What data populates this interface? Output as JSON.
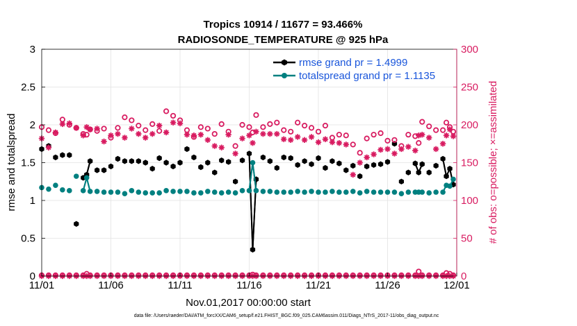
{
  "chart_data": {
    "type": "line",
    "title": "Tropics 10914 / 11677 = 93.466%",
    "subtitle": "RADIOSONDE_TEMPERATURE @ 925 hPa",
    "xlabel": "Nov.01,2017 00:00:00 start",
    "ylabel": "rmse and totalspread",
    "y2label": "# of obs: o=possible; ×=assimilated",
    "footnote": "data file: /Users/raeder/DAI/ATM_forcXX/CAM6_setup/f.e21.FHIST_BGC.f09_025.CAM6assim.011/Diags_NTrS_2017-11/obs_diag_output.nc",
    "x_ticks": [
      "11/01",
      "11/06",
      "11/11",
      "11/16",
      "11/21",
      "11/26",
      "12/01"
    ],
    "x_tick_days": [
      0,
      5,
      10,
      15,
      20,
      25,
      30
    ],
    "xlim": [
      0,
      30
    ],
    "ylim": [
      0,
      3
    ],
    "y_ticks": [
      "0",
      "0.5",
      "1",
      "1.5",
      "2",
      "2.5",
      "3"
    ],
    "y2lim": [
      0,
      300
    ],
    "y2_ticks": [
      "0",
      "50",
      "100",
      "150",
      "200",
      "250",
      "300"
    ],
    "x_days": [
      0.0,
      0.5,
      1.0,
      1.5,
      2.0,
      2.5,
      3.0,
      3.25,
      3.5,
      4.0,
      4.5,
      5.0,
      5.5,
      6.0,
      6.5,
      7.0,
      7.5,
      8.0,
      8.5,
      9.0,
      9.5,
      10.0,
      10.5,
      11.0,
      11.5,
      12.0,
      12.5,
      13.0,
      13.5,
      14.0,
      14.5,
      15.0,
      15.25,
      15.5,
      16.0,
      16.5,
      17.0,
      17.5,
      18.0,
      18.5,
      19.0,
      19.5,
      20.0,
      20.5,
      21.0,
      21.5,
      22.0,
      22.5,
      23.0,
      23.5,
      24.0,
      24.5,
      25.0,
      25.5,
      26.0,
      26.5,
      27.0,
      27.25,
      27.5,
      28.0,
      28.5,
      29.0,
      29.25,
      29.5,
      29.75
    ],
    "series": [
      {
        "name": "rmse grand pr = 1.4999",
        "color": "#000000",
        "axis": "left",
        "marker": "hexagon",
        "values": [
          1.68,
          1.72,
          1.57,
          1.6,
          1.6,
          0.69,
          1.3,
          1.34,
          1.52,
          1.4,
          1.4,
          1.45,
          1.55,
          1.52,
          1.52,
          1.52,
          1.5,
          1.42,
          1.56,
          1.5,
          1.45,
          1.5,
          1.68,
          1.57,
          1.44,
          1.5,
          1.37,
          1.53,
          1.51,
          1.25,
          1.53,
          1.62,
          0.35,
          1.28,
          1.57,
          1.52,
          1.43,
          1.57,
          1.56,
          1.47,
          1.52,
          1.48,
          1.56,
          1.43,
          1.52,
          1.49,
          1.4,
          1.46,
          1.32,
          1.45,
          1.47,
          1.48,
          1.51,
          1.75,
          1.25,
          1.37,
          1.49,
          1.37,
          1.48,
          1.37,
          1.46,
          1.55,
          1.32,
          1.42,
          1.21
        ]
      },
      {
        "name": "totalspread grand pr = 1.1135",
        "color": "#008080",
        "axis": "left",
        "marker": "circle",
        "values": [
          1.17,
          1.15,
          1.2,
          1.14,
          1.13,
          1.32,
          1.13,
          1.3,
          1.12,
          1.12,
          1.11,
          1.11,
          1.11,
          1.09,
          1.13,
          1.11,
          1.1,
          1.1,
          1.1,
          1.13,
          1.12,
          1.12,
          1.12,
          1.1,
          1.1,
          1.12,
          1.11,
          1.1,
          1.11,
          1.1,
          1.13,
          1.13,
          1.5,
          1.13,
          1.12,
          1.12,
          1.11,
          1.11,
          1.11,
          1.12,
          1.11,
          1.12,
          1.11,
          1.11,
          1.12,
          1.11,
          1.11,
          1.12,
          1.1,
          1.12,
          1.11,
          1.11,
          1.11,
          1.11,
          1.09,
          1.11,
          1.11,
          1.11,
          1.11,
          1.1,
          1.11,
          1.11,
          1.2,
          1.19,
          1.28
        ]
      },
      {
        "name": "possible",
        "color": "#d81b60",
        "axis": "right",
        "marker": "open-circle",
        "values": [
          197,
          193,
          189,
          207,
          200,
          196,
          188,
          187,
          194,
          192,
          195,
          183,
          196,
          210,
          206,
          199,
          193,
          201,
          192,
          218,
          212,
          206,
          193,
          184,
          197,
          195,
          188,
          201,
          191,
          172,
          200,
          197,
          190,
          213,
          197,
          201,
          203,
          193,
          191,
          203,
          199,
          196,
          191,
          199,
          183,
          187,
          186,
          174,
          163,
          182,
          187,
          189,
          179,
          180,
          172,
          187,
          185,
          176,
          204,
          198,
          193,
          193,
          203,
          197,
          191
        ],
        "baseline_values": [
          1,
          1,
          1,
          1,
          1,
          1,
          1,
          3,
          1,
          1,
          1,
          1,
          1,
          1,
          1,
          1,
          1,
          1,
          1,
          1,
          1,
          1,
          1,
          1,
          1,
          1,
          1,
          1,
          1,
          1,
          1,
          1,
          2,
          1,
          1,
          1,
          1,
          1,
          1,
          1,
          1,
          1,
          1,
          1,
          1,
          1,
          1,
          1,
          1,
          1,
          1,
          1,
          1,
          1,
          1,
          1,
          1,
          6,
          1,
          1,
          1,
          1,
          4,
          3,
          1
        ]
      },
      {
        "name": "assimilated",
        "color": "#d81b60",
        "axis": "right",
        "marker": "asterisk",
        "values": [
          182,
          170,
          190,
          201,
          202,
          196,
          186,
          197,
          194,
          195,
          178,
          186,
          188,
          183,
          195,
          188,
          183,
          188,
          199,
          190,
          203,
          202,
          187,
          186,
          187,
          180,
          172,
          170,
          187,
          162,
          182,
          186,
          176,
          191,
          188,
          188,
          188,
          181,
          180,
          184,
          180,
          184,
          177,
          181,
          177,
          176,
          174,
          134,
          150,
          157,
          161,
          167,
          168,
          162,
          168,
          171,
          166,
          186,
          187,
          183,
          168,
          175,
          186,
          194,
          185
        ],
        "baseline_values": [
          0,
          0,
          0,
          0,
          0,
          0,
          0,
          0,
          0,
          0,
          0,
          0,
          0,
          0,
          0,
          0,
          0,
          0,
          0,
          0,
          0,
          0,
          0,
          0,
          0,
          0,
          0,
          0,
          0,
          0,
          0,
          0,
          0,
          0,
          0,
          0,
          0,
          0,
          0,
          0,
          0,
          0,
          0,
          0,
          0,
          0,
          0,
          0,
          0,
          0,
          0,
          0,
          0,
          0,
          0,
          0,
          0,
          0,
          0,
          0,
          0,
          0,
          0,
          0,
          0
        ]
      }
    ],
    "legend": {
      "position": "top-right",
      "entries": [
        "rmse grand pr = 1.4999",
        "totalspread grand pr = 1.1135"
      ]
    },
    "grid": true
  }
}
